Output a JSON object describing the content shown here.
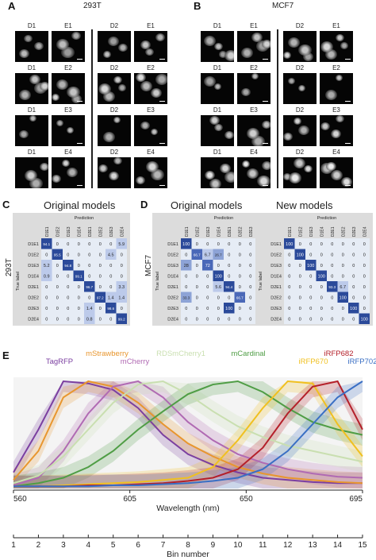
{
  "panelA": {
    "letter": "A",
    "title": "293T",
    "rows": [
      {
        "left": [
          "D1",
          "E1"
        ],
        "right": [
          "D2",
          "E1"
        ]
      },
      {
        "left": [
          "D1",
          "E2"
        ],
        "right": [
          "D2",
          "E2"
        ]
      },
      {
        "left": [
          "D1",
          "E3"
        ],
        "right": [
          "D2",
          "E3"
        ]
      },
      {
        "left": [
          "D1",
          "E4"
        ],
        "right": [
          "D2",
          "E4"
        ]
      }
    ]
  },
  "panelB": {
    "letter": "B",
    "title": "MCF7",
    "rows": [
      {
        "left": [
          "D1",
          "E1"
        ],
        "right": [
          "D2",
          "E1"
        ]
      },
      {
        "left": [
          "D1",
          "E2"
        ],
        "right": [
          "D2",
          "E2"
        ]
      },
      {
        "left": [
          "D1",
          "E3"
        ],
        "right": [
          "D2",
          "E3"
        ]
      },
      {
        "left": [
          "D1",
          "E4"
        ],
        "right": [
          "D2",
          "E4"
        ]
      }
    ]
  },
  "panelC": {
    "letter": "C",
    "title": "Original models",
    "cell_line": "293T",
    "prediction_label": "Prediction",
    "true_label": "True label",
    "classes": [
      "D1E1",
      "D1E2",
      "D1E3",
      "D1E4",
      "D2E1",
      "D2E2",
      "D2E3",
      "D2E4"
    ],
    "matrix": [
      [
        "94.1",
        "0",
        "0",
        "0",
        "0",
        "0",
        "0",
        "5.9"
      ],
      [
        "0",
        "95.5",
        "0",
        "0",
        "0",
        "0",
        "4.5",
        "0"
      ],
      [
        "5.2",
        "0",
        "94.8",
        "0",
        "0",
        "0",
        "0",
        "0"
      ],
      [
        "0.9",
        "0",
        "0",
        "99.1",
        "0",
        "0",
        "0",
        "0"
      ],
      [
        "0",
        "0",
        "0",
        "0",
        "96.7",
        "0",
        "0",
        "3.3"
      ],
      [
        "0",
        "0",
        "0",
        "0",
        "0",
        "97.2",
        "1.4",
        "1.4"
      ],
      [
        "0",
        "0",
        "0",
        "0",
        "1.4",
        "0",
        "98.6",
        "0"
      ],
      [
        "0",
        "0",
        "0",
        "0",
        "0.8",
        "0",
        "0",
        "99.2"
      ]
    ]
  },
  "panelD": {
    "letter": "D",
    "cell_line": "MCF7",
    "prediction_label": "Prediction",
    "true_label": "True label",
    "classes": [
      "D1E1",
      "D1E2",
      "D1E3",
      "D1E4",
      "D2E1",
      "D2E2",
      "D2E3",
      "D2E4"
    ],
    "original": {
      "title": "Original models",
      "matrix": [
        [
          "100",
          "0",
          "0",
          "0",
          "0",
          "0",
          "0",
          "0"
        ],
        [
          "0",
          "66.7",
          "6.7",
          "26.7",
          "0",
          "0",
          "0",
          "0"
        ],
        [
          "28",
          "0",
          "72",
          "0",
          "0",
          "0",
          "0",
          "0"
        ],
        [
          "0",
          "0",
          "0",
          "100",
          "0",
          "0",
          "0",
          "0"
        ],
        [
          "0",
          "0",
          "0",
          "5.6",
          "94.4",
          "0",
          "0",
          "0"
        ],
        [
          "33.3",
          "0",
          "0",
          "0",
          "0",
          "66.7",
          "0",
          "0"
        ],
        [
          "0",
          "0",
          "0",
          "0",
          "100",
          "0",
          "0",
          "0"
        ],
        [
          "0",
          "0",
          "0",
          "0",
          "0",
          "0",
          "0",
          "100"
        ]
      ]
    },
    "new": {
      "title": "New models",
      "matrix": [
        [
          "100",
          "0",
          "0",
          "0",
          "0",
          "0",
          "0",
          "0"
        ],
        [
          "0",
          "100",
          "0",
          "0",
          "0",
          "0",
          "0",
          "0"
        ],
        [
          "0",
          "0",
          "100",
          "0",
          "0",
          "0",
          "0",
          "0"
        ],
        [
          "0",
          "0",
          "0",
          "100",
          "0",
          "0",
          "0",
          "0"
        ],
        [
          "0",
          "0",
          "0",
          "0",
          "93.3",
          "6.7",
          "0",
          "0"
        ],
        [
          "0",
          "0",
          "0",
          "0",
          "0",
          "100",
          "0",
          "0"
        ],
        [
          "0",
          "0",
          "0",
          "0",
          "0",
          "0",
          "100",
          "0"
        ],
        [
          "0",
          "0",
          "0",
          "0",
          "0",
          "0",
          "0",
          "100"
        ]
      ]
    }
  },
  "panelE": {
    "letter": "E",
    "chart_data": {
      "type": "line",
      "xlabel": "Wavelength (nm)",
      "x2label": "Bin number",
      "xlim": [
        560,
        695
      ],
      "xticks": [
        "560",
        "605",
        "650",
        "695"
      ],
      "bins": [
        "1",
        "2",
        "3",
        "4",
        "5",
        "6",
        "7",
        "8",
        "9",
        "10",
        "11",
        "12",
        "13",
        "14",
        "15"
      ],
      "grid": false,
      "series": [
        {
          "name": "TagRFP",
          "color": "#7b3fa0",
          "values": [
            0.15,
            0.55,
            1.0,
            0.98,
            0.92,
            0.75,
            0.5,
            0.32,
            0.22,
            0.15,
            0.1,
            0.08,
            0.06,
            0.05,
            0.05
          ]
        },
        {
          "name": "mStrawberry",
          "color": "#e8962e",
          "values": [
            0.08,
            0.35,
            0.85,
            1.0,
            0.95,
            0.8,
            0.6,
            0.42,
            0.3,
            0.2,
            0.14,
            0.1,
            0.08,
            0.06,
            0.05
          ]
        },
        {
          "name": "mCherry",
          "color": "#b06ab3",
          "values": [
            0.03,
            0.1,
            0.35,
            0.7,
            0.95,
            1.0,
            0.85,
            0.62,
            0.45,
            0.32,
            0.24,
            0.18,
            0.14,
            0.11,
            0.1
          ]
        },
        {
          "name": "RDSmCherry1",
          "color": "#c9dfb0",
          "values": [
            0.05,
            0.12,
            0.3,
            0.55,
            0.8,
            0.97,
            1.0,
            0.88,
            0.72,
            0.58,
            0.48,
            0.4,
            0.35,
            0.3,
            0.25
          ]
        },
        {
          "name": "mCardinal",
          "color": "#4f9d45",
          "values": [
            0.02,
            0.05,
            0.1,
            0.2,
            0.35,
            0.55,
            0.72,
            0.88,
            0.97,
            1.0,
            0.9,
            0.75,
            0.62,
            0.55,
            0.5
          ]
        },
        {
          "name": "iRFP670",
          "color": "#f0c020",
          "values": [
            0.02,
            0.02,
            0.03,
            0.04,
            0.05,
            0.06,
            0.08,
            0.1,
            0.2,
            0.45,
            0.75,
            1.0,
            0.98,
            0.6,
            0.3
          ]
        },
        {
          "name": "iRFP682",
          "color": "#b4202a",
          "values": [
            0.02,
            0.02,
            0.02,
            0.03,
            0.03,
            0.04,
            0.05,
            0.07,
            0.1,
            0.18,
            0.38,
            0.7,
            0.95,
            1.0,
            0.55
          ]
        },
        {
          "name": "iRFP702",
          "color": "#3a6fc4",
          "values": [
            0.02,
            0.02,
            0.02,
            0.02,
            0.03,
            0.03,
            0.04,
            0.05,
            0.07,
            0.1,
            0.18,
            0.35,
            0.6,
            0.85,
            1.0
          ]
        }
      ]
    }
  }
}
